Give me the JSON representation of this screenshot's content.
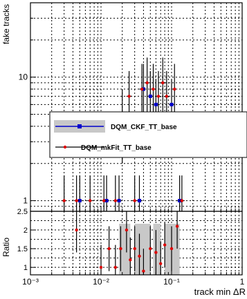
{
  "chart_data": [
    {
      "type": "scatter",
      "title": "",
      "xlabel": "track min ΔR",
      "ylabel": "fake tracks",
      "xscale": "log",
      "yscale": "log",
      "xlim": [
        0.001,
        1
      ],
      "ylim": [
        0.82,
        40
      ],
      "y_tick_labels": [
        "1",
        "10"
      ],
      "grid": true,
      "legend_position": "middle-right",
      "series": [
        {
          "name": "DQM_CKF_TT_base",
          "color": "#0000cc",
          "marker": "square",
          "points": [
            {
              "x": 0.005,
              "y": 1
            },
            {
              "x": 0.012,
              "y": 1
            },
            {
              "x": 0.018,
              "y": 1
            },
            {
              "x": 0.02,
              "y": 5
            },
            {
              "x": 0.035,
              "y": 1
            },
            {
              "x": 0.04,
              "y": 8
            },
            {
              "x": 0.05,
              "y": 7
            },
            {
              "x": 0.06,
              "y": 6
            },
            {
              "x": 0.1,
              "y": 6
            },
            {
              "x": 0.13,
              "y": 1
            }
          ]
        },
        {
          "name": "DQM_mkFit_TT_base",
          "color": "#dd0000",
          "marker": "circle",
          "points": [
            {
              "x": 0.003,
              "y": 1
            },
            {
              "x": 0.0045,
              "y": 1
            },
            {
              "x": 0.007,
              "y": 1
            },
            {
              "x": 0.011,
              "y": 1
            },
            {
              "x": 0.016,
              "y": 1
            },
            {
              "x": 0.025,
              "y": 7
            },
            {
              "x": 0.03,
              "y": 1
            },
            {
              "x": 0.038,
              "y": 8
            },
            {
              "x": 0.045,
              "y": 9
            },
            {
              "x": 0.055,
              "y": 8
            },
            {
              "x": 0.065,
              "y": 7
            },
            {
              "x": 0.075,
              "y": 9
            },
            {
              "x": 0.085,
              "y": 7
            },
            {
              "x": 0.11,
              "y": 8
            },
            {
              "x": 0.14,
              "y": 1
            }
          ]
        }
      ]
    },
    {
      "type": "scatter",
      "title": "",
      "xlabel": "track min ΔR",
      "ylabel": "Ratio",
      "xscale": "log",
      "xlim": [
        0.001,
        1
      ],
      "ylim": [
        0.8,
        2.5
      ],
      "y_tick_labels": [
        "1",
        "1.5",
        "2",
        "2.5"
      ],
      "x_tick_labels": [
        "10⁻³",
        "10⁻²",
        "10⁻¹",
        "1"
      ],
      "grid": true,
      "series": [
        {
          "name": "",
          "color": "#dd0000",
          "marker": "circle",
          "points": [
            {
              "x": 0.0045,
              "y": 2
            },
            {
              "x": 0.01,
              "y": 1
            },
            {
              "x": 0.013,
              "y": 1.5
            },
            {
              "x": 0.016,
              "y": 1
            },
            {
              "x": 0.019,
              "y": 1.5
            },
            {
              "x": 0.023,
              "y": 2
            },
            {
              "x": 0.026,
              "y": 1.2
            },
            {
              "x": 0.03,
              "y": 1.5
            },
            {
              "x": 0.035,
              "y": 1.3
            },
            {
              "x": 0.04,
              "y": 0.9
            },
            {
              "x": 0.05,
              "y": 1.5
            },
            {
              "x": 0.06,
              "y": 1.4
            },
            {
              "x": 0.07,
              "y": 1.1
            },
            {
              "x": 0.08,
              "y": 1.6
            },
            {
              "x": 0.1,
              "y": 1.5
            },
            {
              "x": 0.12,
              "y": 2.1
            }
          ]
        }
      ]
    }
  ]
}
